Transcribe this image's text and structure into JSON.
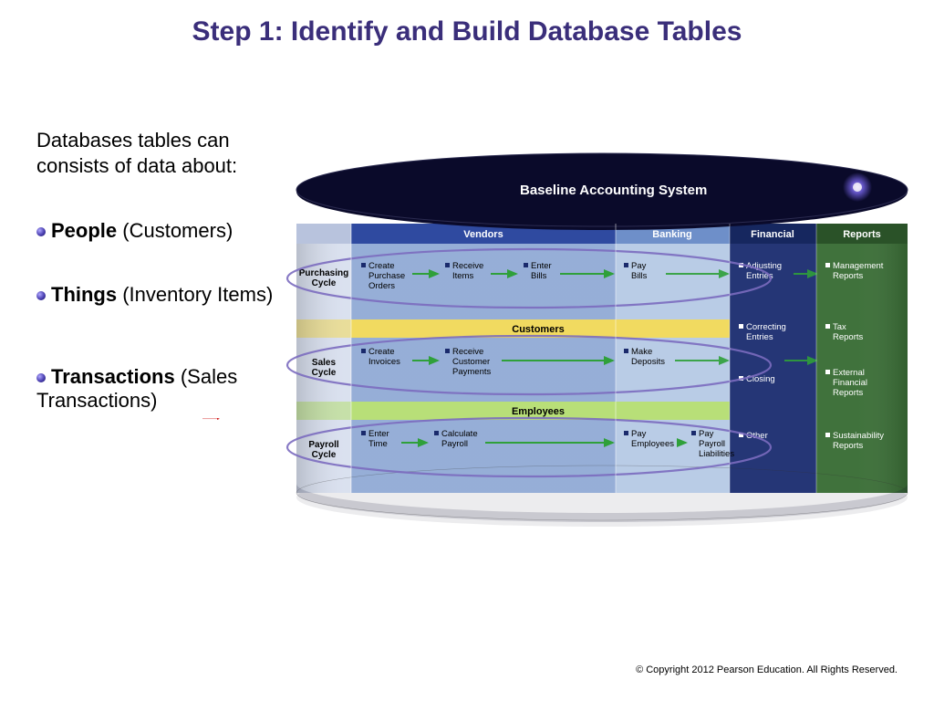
{
  "title": "Step 1: Identify and Build Database Tables",
  "intro": "Databases tables can consists of data about:",
  "bullets": [
    {
      "bold": "People",
      "rest": " (Customers)"
    },
    {
      "bold": "Things",
      "rest": " (Inventory Items)"
    },
    {
      "bold": "Transactions",
      "rest": " (Sales Transactions)"
    }
  ],
  "copyright": "© Copyright 2012 Pearson Education. All Rights Reserved.",
  "diagram": {
    "header_title": "Baseline Accounting System",
    "top_bands": [
      "Vendors",
      "Banking",
      "Financial",
      "Reports"
    ],
    "row_bands": [
      "Customers",
      "Employees"
    ],
    "cycles": [
      "Purchasing Cycle",
      "Sales Cycle",
      "Payroll Cycle"
    ],
    "row1": [
      "Create Purchase Orders",
      "Receive Items",
      "Enter Bills",
      "Pay Bills"
    ],
    "row2": [
      "Create Invoices",
      "Receive Customer Payments",
      "Make Deposits"
    ],
    "row3": [
      "Enter Time",
      "Calculate Payroll",
      "Pay Employees",
      "Pay Payroll Liabilities"
    ],
    "fin": [
      "Adjusting Entries",
      "Correcting Entries",
      "Closing",
      "Other"
    ],
    "rep": [
      "Management Reports",
      "Tax Reports",
      "External Financial Reports",
      "Sustainability Reports"
    ],
    "colors": {
      "background": "#ffffff",
      "title": "#3a2e7a",
      "body_text": "#000000",
      "header_fill": "#0a0a2a",
      "vendors_top": "#2f4aa0",
      "vendors_main": "#93acd6",
      "customers_band": "#f1d95b",
      "employees_band": "#b6de74",
      "banking_top": "#6e8fc9",
      "banking_main": "#b7cae5",
      "financial_fill": "#1e3072",
      "reports_fill": "#3a6e36",
      "cycle_fill": "#d9e0ef",
      "arrow_green": "#2fa03a",
      "arrow_red": "#d01818",
      "circle_stroke": "#7b6bbf",
      "bullet_marker": "#1a2a6c"
    }
  }
}
